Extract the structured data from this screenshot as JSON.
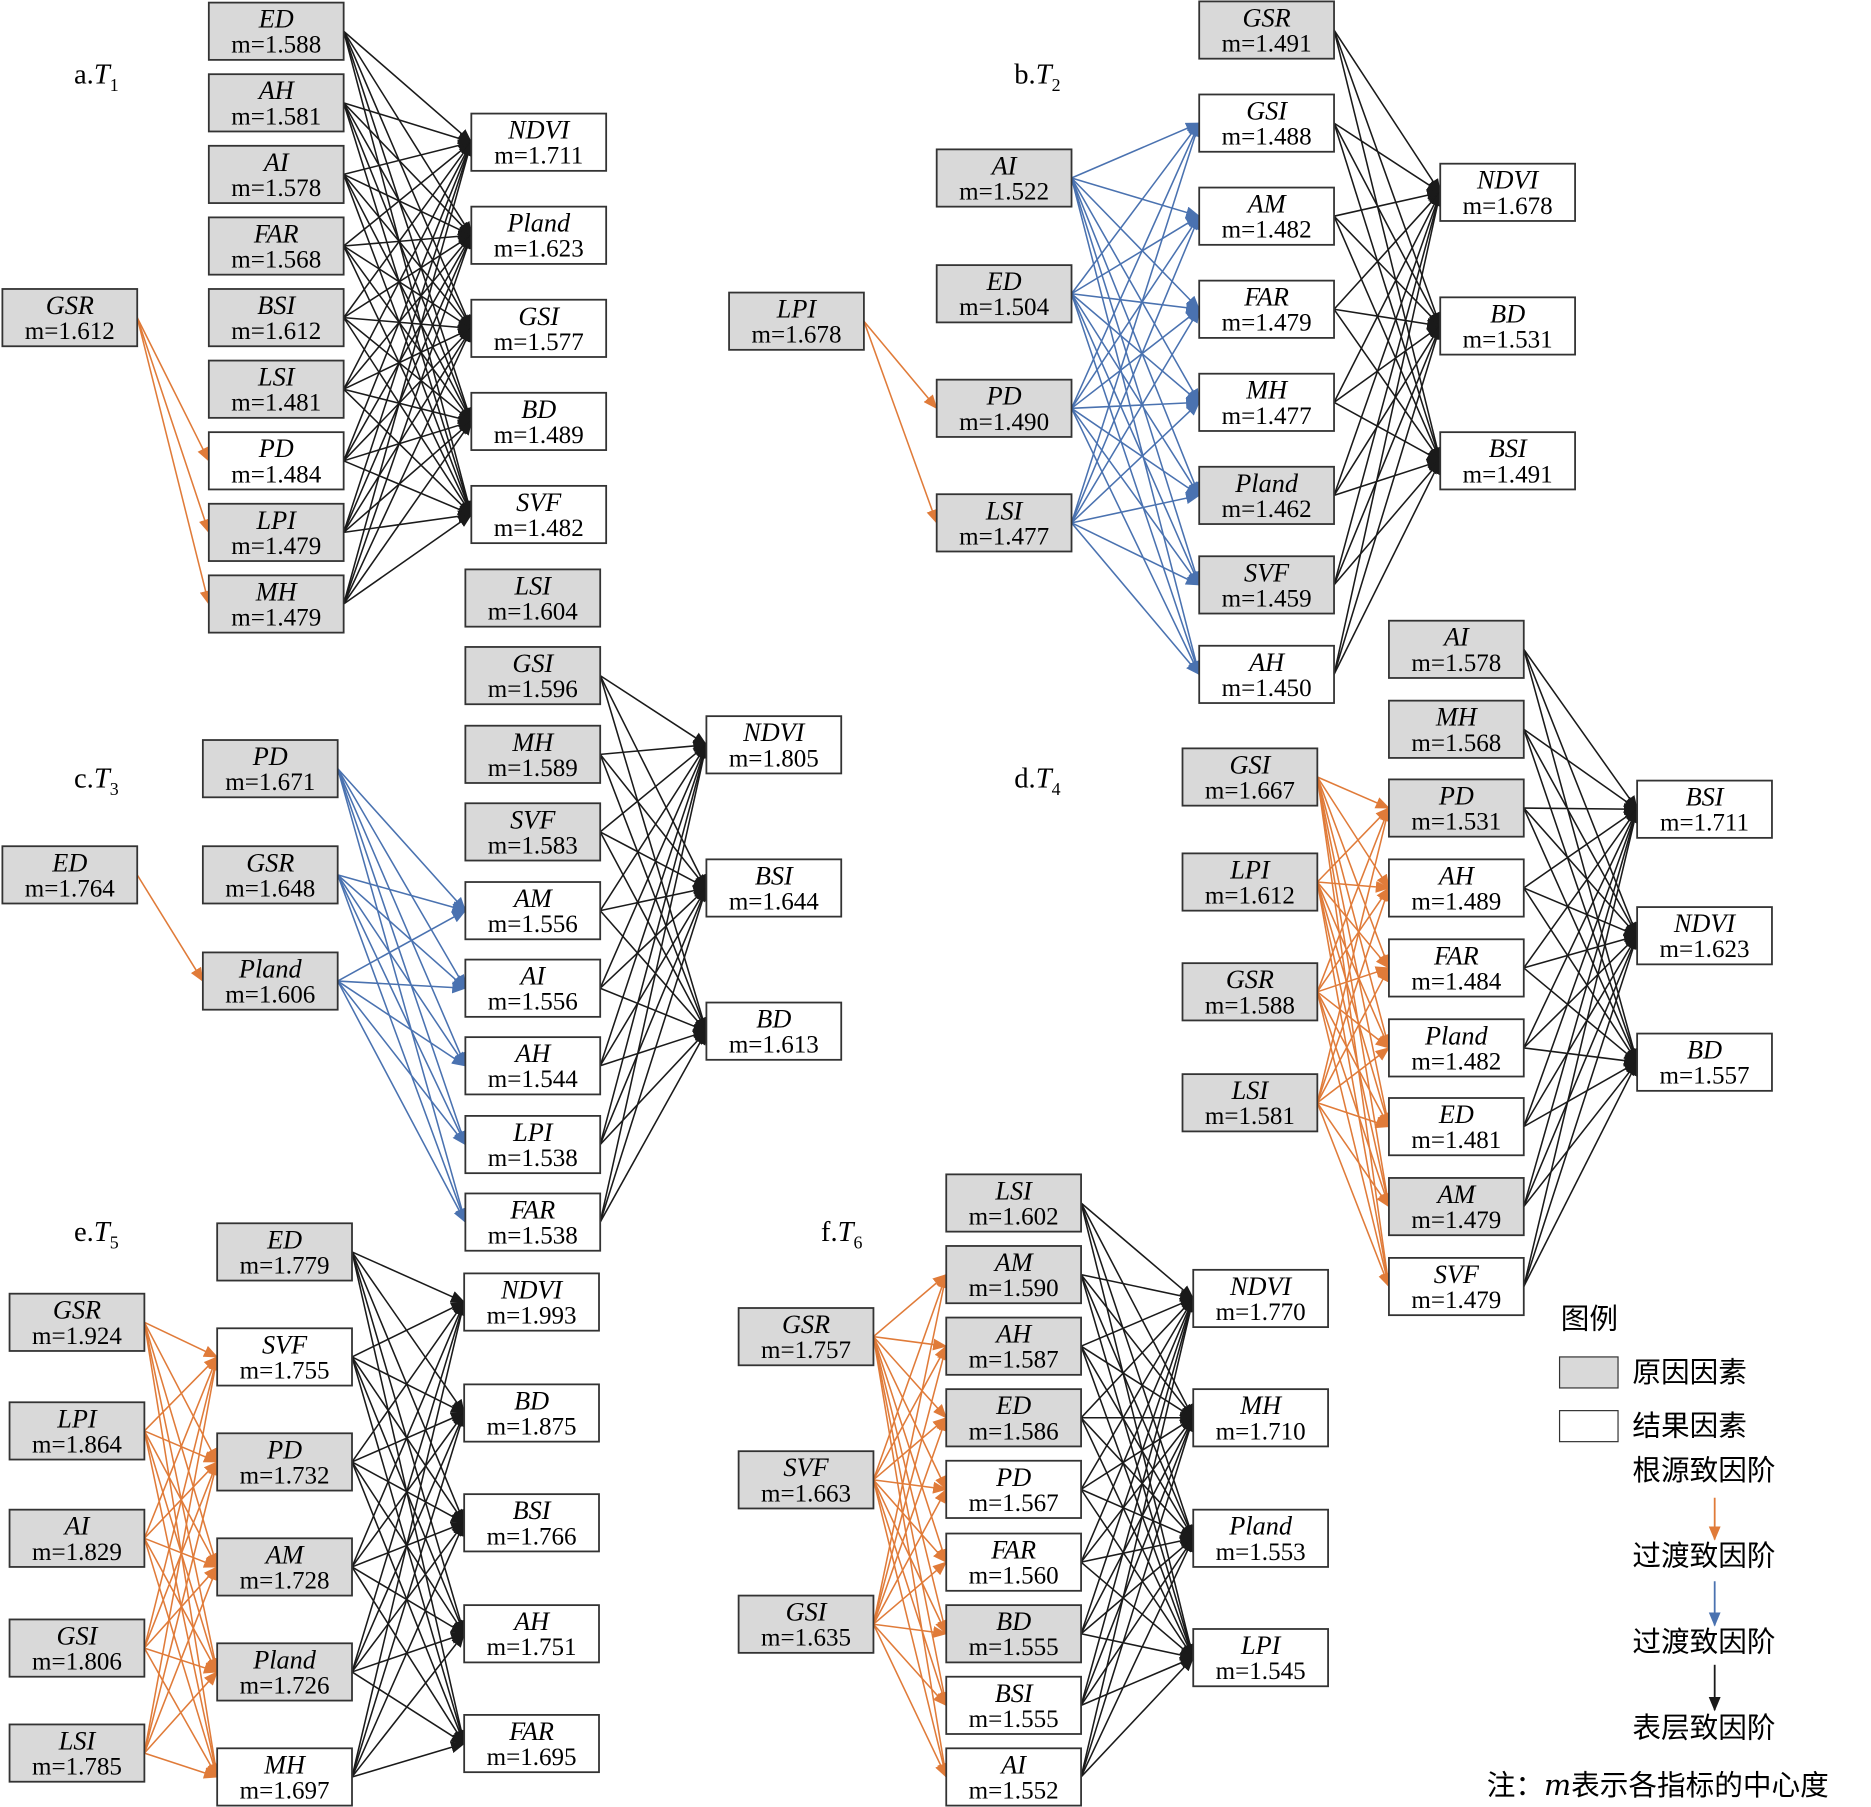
{
  "panels": [
    {
      "title": {
        "letter": "a.",
        "symbol": "T",
        "sub": "1"
      },
      "columns": [
        {
          "nodes": [
            {
              "name": "GSR",
              "m": "m=1.612",
              "kind": "cause"
            }
          ]
        },
        {
          "nodes": [
            {
              "name": "ED",
              "m": "m=1.588",
              "kind": "cause"
            },
            {
              "name": "AH",
              "m": "m=1.581",
              "kind": "cause"
            },
            {
              "name": "AI",
              "m": "m=1.578",
              "kind": "cause"
            },
            {
              "name": "FAR",
              "m": "m=1.568",
              "kind": "cause"
            },
            {
              "name": "BSI",
              "m": "m=1.612",
              "kind": "cause"
            },
            {
              "name": "LSI",
              "m": "m=1.481",
              "kind": "cause"
            },
            {
              "name": "PD",
              "m": "m=1.484",
              "kind": "effect"
            },
            {
              "name": "LPI",
              "m": "m=1.479",
              "kind": "cause"
            },
            {
              "name": "MH",
              "m": "m=1.479",
              "kind": "cause"
            }
          ]
        },
        {
          "nodes": [
            {
              "name": "NDVI",
              "m": "m=1.711",
              "kind": "effect"
            },
            {
              "name": "Pland",
              "m": "m=1.623",
              "kind": "effect"
            },
            {
              "name": "GSI",
              "m": "m=1.577",
              "kind": "effect"
            },
            {
              "name": "BD",
              "m": "m=1.489",
              "kind": "effect"
            },
            {
              "name": "SVF",
              "m": "m=1.482",
              "kind": "effect"
            }
          ]
        }
      ]
    },
    {
      "title": {
        "letter": "b.",
        "symbol": "T",
        "sub": "2"
      },
      "columns": [
        {
          "nodes": [
            {
              "name": "LPI",
              "m": "m=1.678",
              "kind": "cause"
            }
          ]
        },
        {
          "nodes": [
            {
              "name": "AI",
              "m": "m=1.522",
              "kind": "cause"
            },
            {
              "name": "ED",
              "m": "m=1.504",
              "kind": "cause"
            },
            {
              "name": "PD",
              "m": "m=1.490",
              "kind": "cause"
            },
            {
              "name": "LSI",
              "m": "m=1.477",
              "kind": "cause"
            }
          ]
        },
        {
          "nodes": [
            {
              "name": "GSR",
              "m": "m=1.491",
              "kind": "cause"
            },
            {
              "name": "GSI",
              "m": "m=1.488",
              "kind": "effect"
            },
            {
              "name": "AM",
              "m": "m=1.482",
              "kind": "effect"
            },
            {
              "name": "FAR",
              "m": "m=1.479",
              "kind": "effect"
            },
            {
              "name": "MH",
              "m": "m=1.477",
              "kind": "effect"
            },
            {
              "name": "Pland",
              "m": "m=1.462",
              "kind": "cause"
            },
            {
              "name": "SVF",
              "m": "m=1.459",
              "kind": "cause"
            },
            {
              "name": "AH",
              "m": "m=1.450",
              "kind": "effect"
            }
          ]
        },
        {
          "nodes": [
            {
              "name": "NDVI",
              "m": "m=1.678",
              "kind": "effect"
            },
            {
              "name": "BD",
              "m": "m=1.531",
              "kind": "effect"
            },
            {
              "name": "BSI",
              "m": "m=1.491",
              "kind": "effect"
            }
          ]
        }
      ]
    },
    {
      "title": {
        "letter": "c.",
        "symbol": "T",
        "sub": "3"
      },
      "columns": [
        {
          "nodes": [
            {
              "name": "ED",
              "m": "m=1.764",
              "kind": "cause"
            }
          ]
        },
        {
          "nodes": [
            {
              "name": "PD",
              "m": "m=1.671",
              "kind": "cause"
            },
            {
              "name": "GSR",
              "m": "m=1.648",
              "kind": "cause"
            },
            {
              "name": "Pland",
              "m": "m=1.606",
              "kind": "cause"
            }
          ]
        },
        {
          "nodes": [
            {
              "name": "LSI",
              "m": "m=1.604",
              "kind": "cause"
            },
            {
              "name": "GSI",
              "m": "m=1.596",
              "kind": "cause"
            },
            {
              "name": "MH",
              "m": "m=1.589",
              "kind": "cause"
            },
            {
              "name": "SVF",
              "m": "m=1.583",
              "kind": "cause"
            },
            {
              "name": "AM",
              "m": "m=1.556",
              "kind": "effect"
            },
            {
              "name": "AI",
              "m": "m=1.556",
              "kind": "effect"
            },
            {
              "name": "AH",
              "m": "m=1.544",
              "kind": "effect"
            },
            {
              "name": "LPI",
              "m": "m=1.538",
              "kind": "effect"
            },
            {
              "name": "FAR",
              "m": "m=1.538",
              "kind": "effect"
            }
          ]
        },
        {
          "nodes": [
            {
              "name": "NDVI",
              "m": "m=1.805",
              "kind": "effect"
            },
            {
              "name": "BSI",
              "m": "m=1.644",
              "kind": "effect"
            },
            {
              "name": "BD",
              "m": "m=1.613",
              "kind": "effect"
            }
          ]
        }
      ]
    },
    {
      "title": {
        "letter": "d.",
        "symbol": "T",
        "sub": "4"
      },
      "columns": [
        {
          "nodes": [
            {
              "name": "GSI",
              "m": "m=1.667",
              "kind": "cause"
            },
            {
              "name": "LPI",
              "m": "m=1.612",
              "kind": "cause"
            },
            {
              "name": "GSR",
              "m": "m=1.588",
              "kind": "cause"
            },
            {
              "name": "LSI",
              "m": "m=1.581",
              "kind": "cause"
            }
          ]
        },
        {
          "nodes": [
            {
              "name": "AI",
              "m": "m=1.578",
              "kind": "cause"
            },
            {
              "name": "MH",
              "m": "m=1.568",
              "kind": "cause"
            },
            {
              "name": "PD",
              "m": "m=1.531",
              "kind": "cause"
            },
            {
              "name": "AH",
              "m": "m=1.489",
              "kind": "effect"
            },
            {
              "name": "FAR",
              "m": "m=1.484",
              "kind": "effect"
            },
            {
              "name": "Pland",
              "m": "m=1.482",
              "kind": "effect"
            },
            {
              "name": "ED",
              "m": "m=1.481",
              "kind": "effect"
            },
            {
              "name": "AM",
              "m": "m=1.479",
              "kind": "cause"
            },
            {
              "name": "SVF",
              "m": "m=1.479",
              "kind": "effect"
            }
          ]
        },
        {
          "nodes": [
            {
              "name": "BSI",
              "m": "m=1.711",
              "kind": "effect"
            },
            {
              "name": "NDVI",
              "m": "m=1.623",
              "kind": "effect"
            },
            {
              "name": "BD",
              "m": "m=1.557",
              "kind": "effect"
            }
          ]
        }
      ]
    },
    {
      "title": {
        "letter": "e.",
        "symbol": "T",
        "sub": "5"
      },
      "columns": [
        {
          "nodes": [
            {
              "name": "GSR",
              "m": "m=1.924",
              "kind": "cause"
            },
            {
              "name": "LPI",
              "m": "m=1.864",
              "kind": "cause"
            },
            {
              "name": "AI",
              "m": "m=1.829",
              "kind": "cause"
            },
            {
              "name": "GSI",
              "m": "m=1.806",
              "kind": "cause"
            },
            {
              "name": "LSI",
              "m": "m=1.785",
              "kind": "cause"
            }
          ]
        },
        {
          "nodes": [
            {
              "name": "ED",
              "m": "m=1.779",
              "kind": "cause"
            },
            {
              "name": "SVF",
              "m": "m=1.755",
              "kind": "effect"
            },
            {
              "name": "PD",
              "m": "m=1.732",
              "kind": "cause"
            },
            {
              "name": "AM",
              "m": "m=1.728",
              "kind": "cause"
            },
            {
              "name": "Pland",
              "m": "m=1.726",
              "kind": "cause"
            },
            {
              "name": "MH",
              "m": "m=1.697",
              "kind": "effect"
            }
          ]
        },
        {
          "nodes": [
            {
              "name": "NDVI",
              "m": "m=1.993",
              "kind": "effect"
            },
            {
              "name": "BD",
              "m": "m=1.875",
              "kind": "effect"
            },
            {
              "name": "BSI",
              "m": "m=1.766",
              "kind": "effect"
            },
            {
              "name": "AH",
              "m": "m=1.751",
              "kind": "effect"
            },
            {
              "name": "FAR",
              "m": "m=1.695",
              "kind": "effect"
            }
          ]
        }
      ]
    },
    {
      "title": {
        "letter": "f.",
        "symbol": "T",
        "sub": "6"
      },
      "columns": [
        {
          "nodes": [
            {
              "name": "GSR",
              "m": "m=1.757",
              "kind": "cause"
            },
            {
              "name": "SVF",
              "m": "m=1.663",
              "kind": "cause"
            },
            {
              "name": "GSI",
              "m": "m=1.635",
              "kind": "cause"
            }
          ]
        },
        {
          "nodes": [
            {
              "name": "LSI",
              "m": "m=1.602",
              "kind": "cause"
            },
            {
              "name": "AM",
              "m": "m=1.590",
              "kind": "cause"
            },
            {
              "name": "AH",
              "m": "m=1.587",
              "kind": "cause"
            },
            {
              "name": "ED",
              "m": "m=1.586",
              "kind": "cause"
            },
            {
              "name": "PD",
              "m": "m=1.567",
              "kind": "effect"
            },
            {
              "name": "FAR",
              "m": "m=1.560",
              "kind": "effect"
            },
            {
              "name": "BD",
              "m": "m=1.555",
              "kind": "cause"
            },
            {
              "name": "BSI",
              "m": "m=1.555",
              "kind": "effect"
            },
            {
              "name": "AI",
              "m": "m=1.552",
              "kind": "effect"
            }
          ]
        },
        {
          "nodes": [
            {
              "name": "NDVI",
              "m": "m=1.770",
              "kind": "effect"
            },
            {
              "name": "MH",
              "m": "m=1.710",
              "kind": "effect"
            },
            {
              "name": "Pland",
              "m": "m=1.553",
              "kind": "effect"
            },
            {
              "name": "LPI",
              "m": "m=1.545",
              "kind": "effect"
            }
          ]
        }
      ]
    }
  ],
  "legend": {
    "title": "图例",
    "cause": "原因因素",
    "effect": "结果因素",
    "root": "根源致因阶",
    "transition_1": "过渡致因阶",
    "transition_2": "过渡致因阶",
    "surface": "表层致因阶"
  },
  "note": {
    "prefix": "注：",
    "symbol": "m",
    "text": "表示各指标的中心度"
  }
}
